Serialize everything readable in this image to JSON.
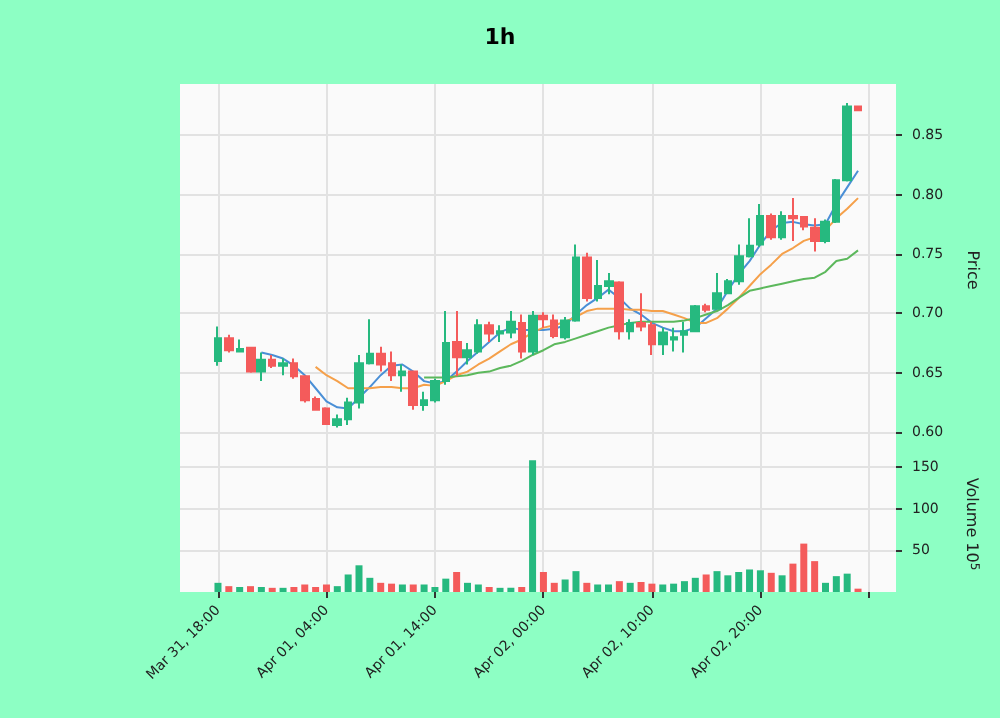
{
  "chart_data": [
    {
      "type": "candlestick",
      "title": "1h",
      "ylabel": "Price",
      "tick_labels": "y",
      "grid": true,
      "x": [
        "--03-31T18:00",
        "--03-31T19:00",
        "--03-31T20:00",
        "--03-31T21:00",
        "--03-31T22:00",
        "--03-31T23:00",
        "--04-01T00:00",
        "--04-01T01:00",
        "--04-01T02:00",
        "--04-01T03:00",
        "--04-01T04:00",
        "--04-01T05:00",
        "--04-01T06:00",
        "--04-01T07:00",
        "--04-01T08:00",
        "--04-01T09:00",
        "--04-01T10:00",
        "--04-01T11:00",
        "--04-01T12:00",
        "--04-01T13:00",
        "--04-01T14:00",
        "--04-01T15:00",
        "--04-01T16:00",
        "--04-01T17:00",
        "--04-01T18:00",
        "--04-01T19:00",
        "--04-01T20:00",
        "--04-01T21:00",
        "--04-01T22:00",
        "--04-01T23:00",
        "--04-02T00:00",
        "--04-02T01:00",
        "--04-02T02:00",
        "--04-02T03:00",
        "--04-02T04:00",
        "--04-02T05:00",
        "--04-02T06:00",
        "--04-02T07:00",
        "--04-02T08:00",
        "--04-02T09:00",
        "--04-02T10:00",
        "--04-02T11:00",
        "--04-02T12:00",
        "--04-02T13:00",
        "--04-02T14:00",
        "--04-02T15:00",
        "--04-02T16:00",
        "--04-02T17:00",
        "--04-02T18:00",
        "--04-02T19:00",
        "--04-02T20:00",
        "--04-02T21:00",
        "--04-02T22:00",
        "--04-02T23:00",
        "--04-03T00:00",
        "--04-03T01:00",
        "--04-03T02:00",
        "--04-03T03:00",
        "--04-03T04:00",
        "--04-03T05:00"
      ],
      "ohlc": [
        [
          0.66,
          0.689,
          0.656,
          0.679
        ],
        [
          0.679,
          0.682,
          0.667,
          0.669
        ],
        [
          0.668,
          0.678,
          0.667,
          0.67
        ],
        [
          0.671,
          0.672,
          0.65,
          0.651
        ],
        [
          0.651,
          0.667,
          0.643,
          0.661
        ],
        [
          0.661,
          0.665,
          0.654,
          0.656
        ],
        [
          0.656,
          0.662,
          0.648,
          0.658
        ],
        [
          0.658,
          0.662,
          0.645,
          0.647
        ],
        [
          0.647,
          0.648,
          0.625,
          0.627
        ],
        [
          0.628,
          0.63,
          0.618,
          0.619
        ],
        [
          0.62,
          0.621,
          0.606,
          0.607
        ],
        [
          0.606,
          0.615,
          0.604,
          0.611
        ],
        [
          0.611,
          0.629,
          0.606,
          0.625
        ],
        [
          0.625,
          0.665,
          0.62,
          0.658
        ],
        [
          0.658,
          0.695,
          0.657,
          0.666
        ],
        [
          0.666,
          0.672,
          0.651,
          0.657
        ],
        [
          0.658,
          0.668,
          0.643,
          0.648
        ],
        [
          0.648,
          0.657,
          0.634,
          0.651
        ],
        [
          0.651,
          0.652,
          0.619,
          0.623
        ],
        [
          0.623,
          0.634,
          0.618,
          0.627
        ],
        [
          0.627,
          0.645,
          0.625,
          0.643
        ],
        [
          0.643,
          0.702,
          0.64,
          0.675
        ],
        [
          0.676,
          0.702,
          0.647,
          0.663
        ],
        [
          0.663,
          0.675,
          0.657,
          0.669
        ],
        [
          0.668,
          0.695,
          0.666,
          0.69
        ],
        [
          0.69,
          0.693,
          0.676,
          0.683
        ],
        [
          0.683,
          0.69,
          0.676,
          0.685
        ],
        [
          0.684,
          0.702,
          0.679,
          0.693
        ],
        [
          0.692,
          0.699,
          0.662,
          0.668
        ],
        [
          0.668,
          0.702,
          0.665,
          0.698
        ],
        [
          0.698,
          0.701,
          0.688,
          0.695
        ],
        [
          0.694,
          0.699,
          0.679,
          0.681
        ],
        [
          0.68,
          0.697,
          0.678,
          0.694
        ],
        [
          0.694,
          0.758,
          0.693,
          0.747
        ],
        [
          0.747,
          0.751,
          0.71,
          0.713
        ],
        [
          0.713,
          0.745,
          0.71,
          0.723
        ],
        [
          0.723,
          0.734,
          0.716,
          0.727
        ],
        [
          0.726,
          0.727,
          0.678,
          0.685
        ],
        [
          0.685,
          0.695,
          0.678,
          0.692
        ],
        [
          0.692,
          0.717,
          0.685,
          0.689
        ],
        [
          0.69,
          0.693,
          0.665,
          0.674
        ],
        [
          0.674,
          0.688,
          0.665,
          0.684
        ],
        [
          0.678,
          0.688,
          0.668,
          0.68
        ],
        [
          0.682,
          0.693,
          0.667,
          0.685
        ],
        [
          0.685,
          0.707,
          0.685,
          0.706
        ],
        [
          0.706,
          0.708,
          0.701,
          0.703
        ],
        [
          0.704,
          0.734,
          0.703,
          0.717
        ],
        [
          0.717,
          0.729,
          0.716,
          0.727
        ],
        [
          0.727,
          0.758,
          0.724,
          0.748
        ],
        [
          0.748,
          0.78,
          0.747,
          0.757
        ],
        [
          0.758,
          0.792,
          0.756,
          0.782
        ],
        [
          0.782,
          0.784,
          0.762,
          0.764
        ],
        [
          0.764,
          0.786,
          0.762,
          0.782
        ],
        [
          0.782,
          0.797,
          0.761,
          0.78
        ],
        [
          0.781,
          0.782,
          0.77,
          0.773
        ],
        [
          0.772,
          0.78,
          0.752,
          0.761
        ],
        [
          0.761,
          0.779,
          0.759,
          0.777
        ],
        [
          0.777,
          0.813,
          0.776,
          0.812
        ],
        [
          0.812,
          0.877,
          0.811,
          0.874
        ],
        [
          0.874,
          0.875,
          0.87,
          0.871
        ]
      ],
      "colors": [
        "#26b97f",
        "#f45b5b",
        "#26b97f",
        "#f45b5b",
        "#26b97f",
        "#f45b5b",
        "#26b97f",
        "#f45b5b",
        "#f45b5b",
        "#f45b5b",
        "#f45b5b",
        "#26b97f",
        "#26b97f",
        "#26b97f",
        "#26b97f",
        "#f45b5b",
        "#f45b5b",
        "#26b97f",
        "#f45b5b",
        "#26b97f",
        "#26b97f",
        "#26b97f",
        "#f45b5b",
        "#26b97f",
        "#26b97f",
        "#f45b5b",
        "#26b97f",
        "#26b97f",
        "#f45b5b",
        "#26b97f",
        "#f45b5b",
        "#f45b5b",
        "#26b97f",
        "#26b97f",
        "#f45b5b",
        "#26b97f",
        "#26b97f",
        "#f45b5b",
        "#26b97f",
        "#f45b5b",
        "#f45b5b",
        "#26b97f",
        "#26b97f",
        "#26b97f",
        "#26b97f",
        "#f45b5b",
        "#26b97f",
        "#26b97f",
        "#26b97f",
        "#26b97f",
        "#26b97f",
        "#f45b5b",
        "#26b97f",
        "#f45b5b",
        "#f45b5b",
        "#f45b5b",
        "#26b97f",
        "#26b97f",
        "#26b97f",
        "#f45b5b"
      ],
      "series": [
        {
          "type": "line",
          "color": "#4a8fd6",
          "values": [
            null,
            null,
            null,
            null,
            0.667,
            0.665,
            0.662,
            0.656,
            0.648,
            0.637,
            0.626,
            0.621,
            0.62,
            0.629,
            0.638,
            0.648,
            0.656,
            0.657,
            0.651,
            0.643,
            0.641,
            0.643,
            0.651,
            0.66,
            0.668,
            0.676,
            0.684,
            0.688,
            0.686,
            0.686,
            0.686,
            0.687,
            0.69,
            0.699,
            0.707,
            0.713,
            0.72,
            0.713,
            0.704,
            0.699,
            0.692,
            0.688,
            0.685,
            0.685,
            0.688,
            0.696,
            0.704,
            0.719,
            0.733,
            0.744,
            0.758,
            0.77,
            0.776,
            0.777,
            0.775,
            0.774,
            0.775,
            0.792,
            0.806,
            0.82
          ]
        },
        {
          "type": "line",
          "color": "#f5a04a",
          "values": [
            null,
            null,
            null,
            null,
            null,
            null,
            null,
            null,
            null,
            0.655,
            0.648,
            0.643,
            0.637,
            0.637,
            0.637,
            0.638,
            0.638,
            0.637,
            0.637,
            0.64,
            0.639,
            0.643,
            0.648,
            0.651,
            0.657,
            0.662,
            0.668,
            0.674,
            0.678,
            0.684,
            0.688,
            0.69,
            0.693,
            0.697,
            0.702,
            0.704,
            0.704,
            0.704,
            0.703,
            0.703,
            0.702,
            0.702,
            0.699,
            0.696,
            0.692,
            0.692,
            0.696,
            0.704,
            0.713,
            0.723,
            0.733,
            0.741,
            0.75,
            0.755,
            0.761,
            0.764,
            0.77,
            0.78,
            0.788,
            0.797
          ]
        },
        {
          "type": "line",
          "color": "#5cb85c",
          "values": [
            null,
            null,
            null,
            null,
            null,
            null,
            null,
            null,
            null,
            null,
            null,
            null,
            null,
            null,
            null,
            null,
            null,
            null,
            null,
            0.646,
            0.646,
            0.646,
            0.647,
            0.648,
            0.65,
            0.651,
            0.654,
            0.656,
            0.66,
            0.665,
            0.669,
            0.674,
            0.676,
            0.679,
            0.682,
            0.685,
            0.688,
            0.69,
            0.692,
            0.693,
            0.693,
            0.693,
            0.693,
            0.694,
            0.696,
            0.699,
            0.702,
            0.707,
            0.713,
            0.719,
            0.721,
            0.723,
            0.725,
            0.727,
            0.729,
            0.73,
            0.735,
            0.744,
            0.746,
            0.753
          ]
        }
      ],
      "xlim": [
        "--03-31T14:30",
        "--04-03T08:30"
      ],
      "xticks": [
        {
          "value": "--03-31T18:00",
          "label": "Mar 31, 18:00"
        },
        {
          "value": "--04-01T04:00",
          "label": "Apr 01, 04:00"
        },
        {
          "value": "--04-01T14:00",
          "label": "Apr 01, 14:00"
        },
        {
          "value": "--04-02T00:00",
          "label": "Apr 02, 00:00"
        },
        {
          "value": "--04-02T10:00",
          "label": "Apr 02, 10:00"
        },
        {
          "value": "--04-02T20:00",
          "label": "Apr 02, 20:00"
        },
        {
          "value": "--04-03T06:00",
          "label": null
        }
      ],
      "ylim": [
        0.58,
        0.893
      ],
      "yticks": [
        {
          "value": 0.6,
          "label": "0.60"
        },
        {
          "value": 0.65,
          "label": "0.65"
        },
        {
          "value": 0.7,
          "label": "0.70"
        },
        {
          "value": 0.75,
          "label": "0.75"
        },
        {
          "value": 0.8,
          "label": "0.80"
        },
        {
          "value": 0.85,
          "label": "0.85"
        }
      ]
    },
    {
      "type": "bar",
      "ylabel": "Volume 10$^{5}$",
      "grid": true,
      "x": [
        "--03-31T18:00",
        "--03-31T19:00",
        "--03-31T20:00",
        "--03-31T21:00",
        "--03-31T22:00",
        "--03-31T23:00",
        "--04-01T00:00",
        "--04-01T01:00",
        "--04-01T02:00",
        "--04-01T03:00",
        "--04-01T04:00",
        "--04-01T05:00",
        "--04-01T06:00",
        "--04-01T07:00",
        "--04-01T08:00",
        "--04-01T09:00",
        "--04-01T10:00",
        "--04-01T11:00",
        "--04-01T12:00",
        "--04-01T13:00",
        "--04-01T14:00",
        "--04-01T15:00",
        "--04-01T16:00",
        "--04-01T17:00",
        "--04-01T18:00",
        "--04-01T19:00",
        "--04-01T20:00",
        "--04-01T21:00",
        "--04-01T22:00",
        "--04-01T23:00",
        "--04-02T00:00",
        "--04-02T01:00",
        "--04-02T02:00",
        "--04-02T03:00",
        "--04-02T04:00",
        "--04-02T05:00",
        "--04-02T06:00",
        "--04-02T07:00",
        "--04-02T08:00",
        "--04-02T09:00",
        "--04-02T10:00",
        "--04-02T11:00",
        "--04-02T12:00",
        "--04-02T13:00",
        "--04-02T14:00",
        "--04-02T15:00",
        "--04-02T16:00",
        "--04-02T17:00",
        "--04-02T18:00",
        "--04-02T19:00",
        "--04-02T20:00",
        "--04-02T21:00",
        "--04-02T22:00",
        "--04-02T23:00",
        "--04-03T00:00",
        "--04-03T01:00",
        "--04-03T02:00",
        "--04-03T03:00",
        "--04-03T04:00",
        "--04-03T05:00"
      ],
      "values": [
        11,
        7,
        6,
        7,
        6,
        5,
        5,
        6,
        9,
        6,
        9,
        7,
        21,
        32,
        17,
        11,
        10,
        9,
        9,
        9,
        6,
        16,
        24,
        11,
        9,
        6,
        5,
        5,
        6,
        158,
        24,
        11,
        15,
        25,
        11,
        9,
        9,
        13,
        11,
        12,
        10,
        9,
        10,
        13,
        17,
        21,
        25,
        20,
        24,
        27,
        26,
        23,
        20,
        34,
        58,
        37,
        11,
        19,
        22,
        4
      ],
      "colors": [
        "#26b97f",
        "#f45b5b",
        "#26b97f",
        "#f45b5b",
        "#26b97f",
        "#f45b5b",
        "#26b97f",
        "#f45b5b",
        "#f45b5b",
        "#f45b5b",
        "#f45b5b",
        "#26b97f",
        "#26b97f",
        "#26b97f",
        "#26b97f",
        "#f45b5b",
        "#f45b5b",
        "#26b97f",
        "#f45b5b",
        "#26b97f",
        "#26b97f",
        "#26b97f",
        "#f45b5b",
        "#26b97f",
        "#26b97f",
        "#f45b5b",
        "#26b97f",
        "#26b97f",
        "#f45b5b",
        "#26b97f",
        "#f45b5b",
        "#f45b5b",
        "#26b97f",
        "#26b97f",
        "#f45b5b",
        "#26b97f",
        "#26b97f",
        "#f45b5b",
        "#26b97f",
        "#f45b5b",
        "#f45b5b",
        "#26b97f",
        "#26b97f",
        "#26b97f",
        "#26b97f",
        "#f45b5b",
        "#26b97f",
        "#26b97f",
        "#26b97f",
        "#26b97f",
        "#26b97f",
        "#f45b5b",
        "#26b97f",
        "#f45b5b",
        "#f45b5b",
        "#f45b5b",
        "#26b97f",
        "#26b97f",
        "#26b97f",
        "#f45b5b"
      ],
      "xlim": [
        "--03-31T14:30",
        "--04-03T08:30"
      ],
      "xticks": [
        {
          "value": "--03-31T18:00",
          "label": "Mar 31, 18:00"
        },
        {
          "value": "--04-01T04:00",
          "label": "Apr 01, 04:00"
        },
        {
          "value": "--04-01T14:00",
          "label": "Apr 01, 14:00"
        },
        {
          "value": "--04-02T00:00",
          "label": "Apr 02, 00:00"
        },
        {
          "value": "--04-02T10:00",
          "label": "Apr 02, 10:00"
        },
        {
          "value": "--04-02T20:00",
          "label": "Apr 02, 20:00"
        },
        {
          "value": "--04-03T06:00",
          "label": null
        }
      ],
      "ylim": [
        0,
        163
      ],
      "yticks": [
        50,
        100,
        150
      ]
    }
  ]
}
